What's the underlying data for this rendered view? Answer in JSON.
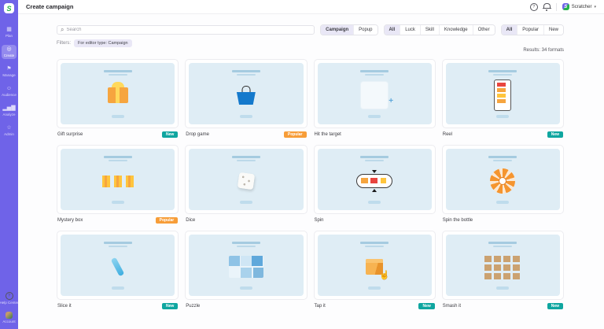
{
  "header": {
    "title": "Create campaign",
    "help_glyph": "?",
    "account_label": "Scratcher",
    "chevron": "▾"
  },
  "sidebar": {
    "logo_letter": "S",
    "items": [
      {
        "label": "Plan",
        "icon": "grid-icon",
        "glyph": "▦",
        "active": false
      },
      {
        "label": "Create",
        "icon": "target-icon",
        "glyph": "◎",
        "active": true
      },
      {
        "label": "Manage",
        "icon": "megaphone-icon",
        "glyph": "⚑",
        "active": false
      },
      {
        "label": "Audience",
        "icon": "people-icon",
        "glyph": "☺",
        "active": false
      },
      {
        "label": "Analyze",
        "icon": "bar-chart-icon",
        "glyph": "▂▅▇",
        "active": false
      },
      {
        "label": "Admin",
        "icon": "star-icon",
        "glyph": "☆",
        "active": false
      }
    ],
    "footer": [
      {
        "label": "Help Center",
        "icon": "help-circle-icon",
        "glyph": "?"
      },
      {
        "label": "Account",
        "icon": "avatar",
        "glyph": ""
      }
    ]
  },
  "toolbar": {
    "search_glyph": "⌕",
    "search_placeholder": "Search",
    "filters_label": "Filters:",
    "filter_chip": "For editor type: Campaign",
    "results_text": "Results: 34 formats",
    "groups": [
      {
        "options": [
          "Campaign",
          "Popup"
        ],
        "selected": "Campaign"
      },
      {
        "options": [
          "All",
          "Luck",
          "Skill",
          "Knowledge",
          "Other"
        ],
        "selected": "All"
      },
      {
        "options": [
          "All",
          "Popular",
          "New"
        ],
        "selected": "All"
      }
    ]
  },
  "grid": {
    "cards": [
      {
        "title": "Gift surprise",
        "badge": "New",
        "art": "gift"
      },
      {
        "title": "Drop game",
        "badge": "Popular",
        "art": "basket"
      },
      {
        "title": "Hit the target",
        "badge": null,
        "art": "target"
      },
      {
        "title": "Reel",
        "badge": "New",
        "art": "phone"
      },
      {
        "title": "Mystery box",
        "badge": "Popular",
        "art": "mystery"
      },
      {
        "title": "Dice",
        "badge": null,
        "art": "dice"
      },
      {
        "title": "Spin",
        "badge": null,
        "art": "spin"
      },
      {
        "title": "Spin the bottle",
        "badge": null,
        "art": "bottle"
      },
      {
        "title": "Slice it",
        "badge": "New",
        "art": "slice"
      },
      {
        "title": "Puzzle",
        "badge": null,
        "art": "puzzle"
      },
      {
        "title": "Tap it",
        "badge": "New",
        "art": "tapbox"
      },
      {
        "title": "Smash it",
        "badge": "New",
        "art": "smash"
      }
    ]
  },
  "colors": {
    "accent": "#6F63E8",
    "badge_new": "#0FA6A0",
    "badge_popular": "#F79D38",
    "card_image_bg": "#DFEDF5",
    "selected_chip_bg": "#E9E7F6"
  }
}
